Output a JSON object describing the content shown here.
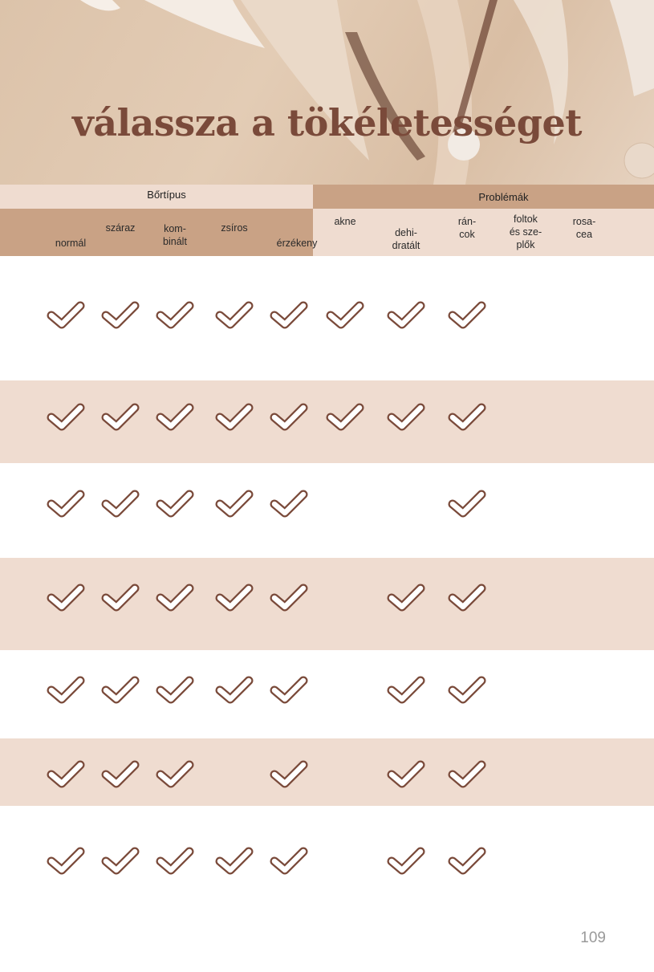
{
  "title": "válassza a tökéletességet",
  "header": {
    "group1": "Bőrtípus",
    "group2": "Problémák",
    "columns": [
      "normál",
      "száraz",
      "kom-\nbinált",
      "zsíros",
      "érzékeny",
      "akne",
      "dehi-\ndratált",
      "rán-\ncok",
      "foltok\nés sze-\nplők",
      "rosa-\ncea"
    ]
  },
  "rows": [
    [
      1,
      1,
      1,
      1,
      1,
      1,
      1,
      1,
      0,
      0
    ],
    [
      1,
      1,
      1,
      1,
      1,
      1,
      1,
      1,
      0,
      0
    ],
    [
      1,
      1,
      1,
      1,
      1,
      0,
      0,
      1,
      0,
      0
    ],
    [
      1,
      1,
      1,
      1,
      1,
      0,
      1,
      1,
      0,
      0
    ],
    [
      1,
      1,
      1,
      1,
      1,
      0,
      1,
      1,
      0,
      0
    ],
    [
      1,
      1,
      1,
      0,
      1,
      0,
      1,
      1,
      0,
      0
    ],
    [
      1,
      1,
      1,
      1,
      1,
      0,
      1,
      1,
      0,
      0
    ]
  ],
  "page_number": "109",
  "colors": {
    "accent": "#c9a285",
    "light": "#efdcd0",
    "check": "#7a4a3a"
  },
  "icons": {
    "check": "check-icon"
  }
}
